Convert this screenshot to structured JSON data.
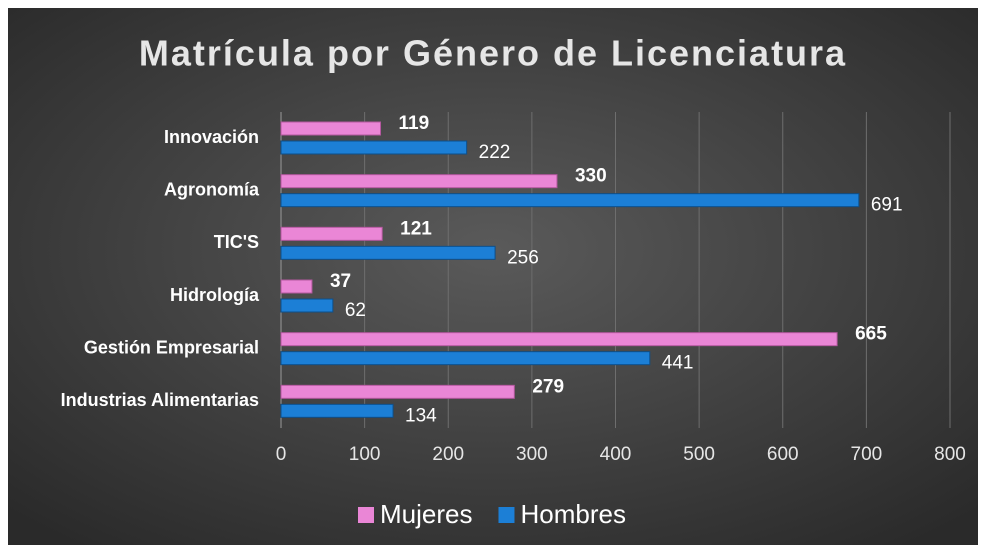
{
  "chart_data": {
    "type": "bar",
    "orientation": "horizontal",
    "title": "Matrícula por Género de Licenciatura",
    "categories": [
      "Innovación",
      "Agronomía",
      "TIC'S",
      "Hidrología",
      "Gestión Empresarial",
      "Industrias Alimentarias"
    ],
    "series": [
      {
        "name": "Mujeres",
        "color": "#ea86d6",
        "values": [
          119,
          330,
          121,
          37,
          665,
          279
        ]
      },
      {
        "name": "Hombres",
        "color": "#1c7fd6",
        "values": [
          222,
          691,
          256,
          62,
          441,
          134
        ]
      }
    ],
    "xlim": [
      0,
      800
    ],
    "xticks": [
      0,
      100,
      200,
      300,
      400,
      500,
      600,
      700,
      800
    ],
    "grid": true,
    "legend": "bottom"
  }
}
